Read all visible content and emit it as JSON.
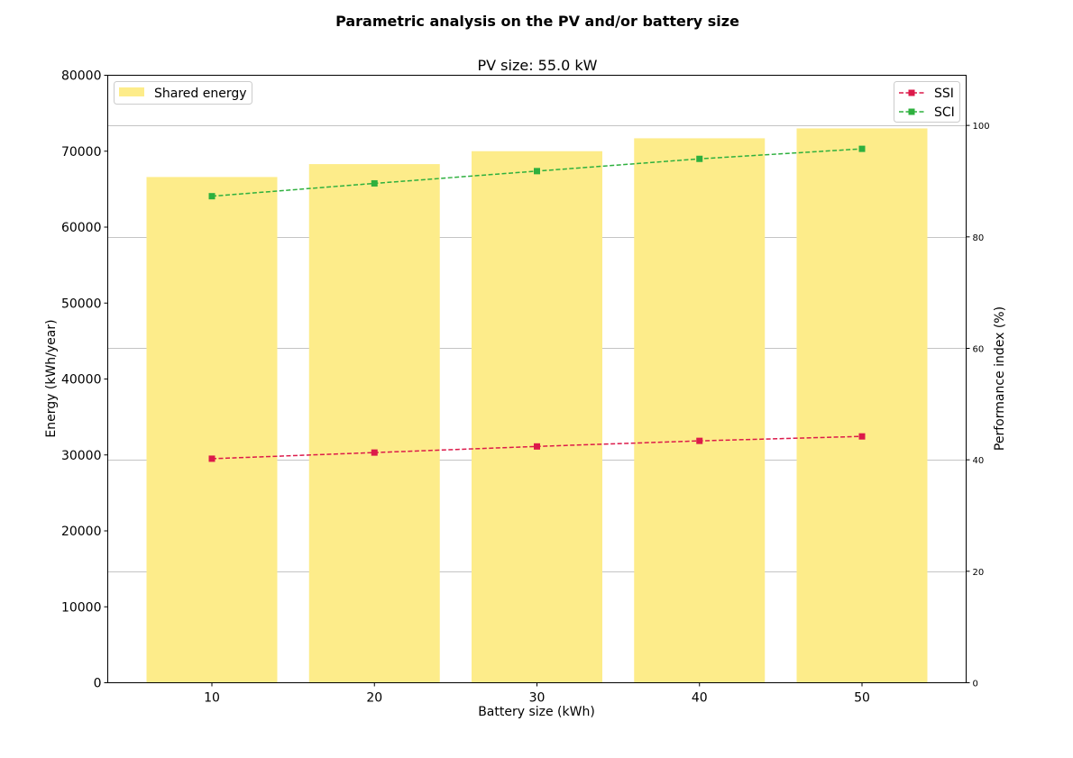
{
  "figure": {
    "suptitle": "Parametric analysis on the PV and/or battery size",
    "subtitle": "PV size: 55.0 kW"
  },
  "chart_data": {
    "type": "bar",
    "categories": [
      10,
      20,
      30,
      40,
      50
    ],
    "xlabel": "Battery size (kWh)",
    "ylabel": "Energy (kWh/year)",
    "ylim": [
      0,
      80000
    ],
    "y_ticks": [
      0,
      10000,
      20000,
      30000,
      40000,
      50000,
      60000,
      70000,
      80000
    ],
    "y2label": "Performance index (%)",
    "y2lim": [
      0,
      109
    ],
    "y2_ticks": [
      0,
      20,
      40,
      60,
      80,
      100
    ],
    "grid": "right-axis horizontal gridlines",
    "bars": {
      "name": "Shared energy",
      "values": [
        66600,
        68300,
        70000,
        71700,
        73000
      ],
      "color": "#fdec8a"
    },
    "lines": [
      {
        "name": "SSI",
        "axis": "right",
        "values": [
          40.2,
          41.3,
          42.4,
          43.4,
          44.2
        ],
        "color": "#dc1a4a",
        "style": "dashed",
        "marker": "square"
      },
      {
        "name": "SCI",
        "axis": "right",
        "values": [
          87.3,
          89.6,
          91.8,
          94.0,
          95.8
        ],
        "color": "#2eb03e",
        "style": "dashed",
        "marker": "square"
      }
    ],
    "legends": [
      {
        "position": "upper-left",
        "entries": [
          "Shared energy"
        ]
      },
      {
        "position": "upper-right",
        "entries": [
          "SSI",
          "SCI"
        ]
      }
    ]
  }
}
